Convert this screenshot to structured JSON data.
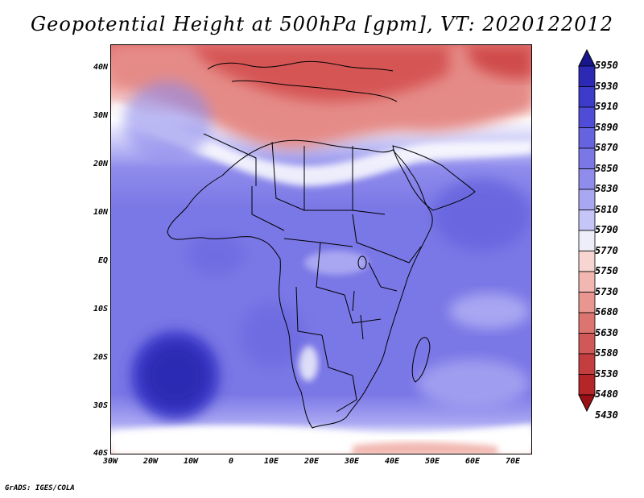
{
  "title": "Geopotential Height at 500hPa [gpm], VT: 2020122012",
  "footer": "GrADS: IGES/COLA",
  "map": {
    "projection": "latlon",
    "lon_range": [
      -30,
      75
    ],
    "lat_range": [
      -40,
      45
    ],
    "lat_labels": [
      "40N",
      "30N",
      "20N",
      "10N",
      "EQ",
      "10S",
      "20S",
      "30S",
      "40S"
    ],
    "lon_labels": [
      "30W",
      "20W",
      "10W",
      "0",
      "10E",
      "20E",
      "30E",
      "40E",
      "50E",
      "60E",
      "70E"
    ],
    "features": [
      "coastlines",
      "country-borders"
    ]
  },
  "colorbar": {
    "levels": [
      "5950",
      "5930",
      "5910",
      "5890",
      "5870",
      "5850",
      "5830",
      "5810",
      "5790",
      "5770",
      "5750",
      "5730",
      "5680",
      "5630",
      "5580",
      "5530",
      "5480",
      "5430"
    ],
    "colors": [
      "#18168c",
      "#2c2ab4",
      "#3d3bc9",
      "#4f4dd8",
      "#6663de",
      "#7a77e6",
      "#8f8cec",
      "#a9a7f2",
      "#c6c5f7",
      "#eeeef8",
      "#f7d6d2",
      "#f1b7b0",
      "#e8968f",
      "#dc7570",
      "#d05857",
      "#c43e3f",
      "#b52628",
      "#9a1014"
    ]
  }
}
